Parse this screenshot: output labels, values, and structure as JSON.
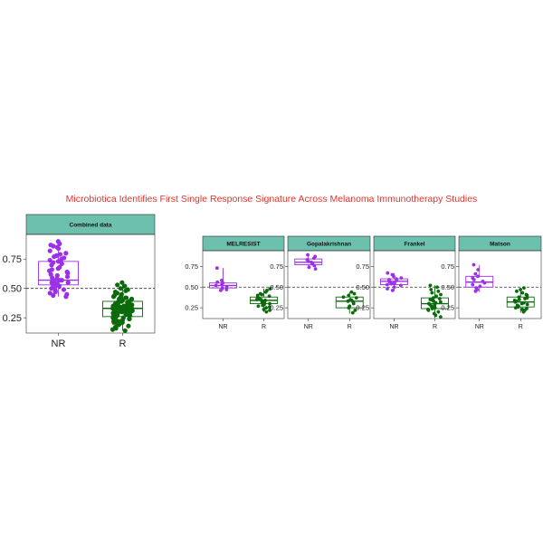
{
  "title": "Microbiotica Identifies First Single Response Signature Across Melanoma Immunotherapy Studies",
  "colors": {
    "nr": "#9b30e8",
    "r": "#0a6b0a",
    "strip": "#6dbfae",
    "title": "#e8312a"
  },
  "chart_data": [
    {
      "type": "box",
      "title": "Combined data",
      "categories": [
        "NR",
        "R"
      ],
      "yticks": [
        "0.25",
        "0.50",
        "0.75"
      ],
      "ylim": [
        0.12,
        0.96
      ],
      "reference_line": 0.5,
      "boxes": [
        {
          "name": "NR",
          "q1": 0.53,
          "median": 0.57,
          "q3": 0.73,
          "whisker_low": 0.43,
          "whisker_high": 0.9,
          "points": [
            0.9,
            0.88,
            0.87,
            0.86,
            0.85,
            0.84,
            0.82,
            0.8,
            0.79,
            0.78,
            0.77,
            0.76,
            0.75,
            0.74,
            0.73,
            0.72,
            0.71,
            0.7,
            0.68,
            0.67,
            0.66,
            0.65,
            0.64,
            0.63,
            0.62,
            0.61,
            0.6,
            0.59,
            0.58,
            0.57,
            0.57,
            0.56,
            0.55,
            0.55,
            0.54,
            0.53,
            0.52,
            0.51,
            0.5,
            0.49,
            0.48,
            0.47,
            0.46,
            0.45,
            0.44,
            0.43
          ]
        },
        {
          "name": "R",
          "q1": 0.26,
          "median": 0.33,
          "q3": 0.39,
          "whisker_low": 0.14,
          "whisker_high": 0.55,
          "points": [
            0.55,
            0.53,
            0.52,
            0.5,
            0.49,
            0.48,
            0.47,
            0.46,
            0.45,
            0.44,
            0.43,
            0.43,
            0.42,
            0.42,
            0.41,
            0.41,
            0.4,
            0.4,
            0.4,
            0.39,
            0.39,
            0.39,
            0.38,
            0.38,
            0.38,
            0.37,
            0.37,
            0.37,
            0.36,
            0.36,
            0.36,
            0.36,
            0.35,
            0.35,
            0.35,
            0.35,
            0.34,
            0.34,
            0.34,
            0.34,
            0.33,
            0.33,
            0.33,
            0.33,
            0.33,
            0.32,
            0.32,
            0.32,
            0.32,
            0.31,
            0.31,
            0.31,
            0.31,
            0.3,
            0.3,
            0.3,
            0.3,
            0.29,
            0.29,
            0.29,
            0.28,
            0.28,
            0.28,
            0.27,
            0.27,
            0.27,
            0.26,
            0.26,
            0.26,
            0.25,
            0.25,
            0.24,
            0.24,
            0.23,
            0.23,
            0.22,
            0.22,
            0.21,
            0.21,
            0.2,
            0.2,
            0.19,
            0.18,
            0.17,
            0.16,
            0.15,
            0.14
          ]
        }
      ]
    },
    {
      "type": "box",
      "title": "MELRESIST",
      "categories": [
        "NR",
        "R"
      ],
      "yticks": [
        "0.25",
        "0.50",
        "0.75"
      ],
      "ylim": [
        0.12,
        0.94
      ],
      "reference_line": 0.5,
      "boxes": [
        {
          "name": "NR",
          "q1": 0.49,
          "median": 0.52,
          "q3": 0.55,
          "whisker_low": 0.46,
          "whisker_high": 0.73,
          "points": [
            0.73,
            0.58,
            0.56,
            0.55,
            0.53,
            0.52,
            0.5,
            0.49,
            0.47,
            0.46
          ]
        },
        {
          "name": "R",
          "q1": 0.3,
          "median": 0.34,
          "q3": 0.38,
          "whisker_low": 0.2,
          "whisker_high": 0.48,
          "points": [
            0.48,
            0.46,
            0.44,
            0.42,
            0.41,
            0.4,
            0.39,
            0.38,
            0.37,
            0.36,
            0.35,
            0.35,
            0.34,
            0.33,
            0.32,
            0.31,
            0.3,
            0.29,
            0.28,
            0.27,
            0.26,
            0.25,
            0.23,
            0.22,
            0.2
          ]
        }
      ]
    },
    {
      "type": "box",
      "title": "Gopalakrishnan",
      "categories": [
        "NR",
        "R"
      ],
      "yticks": [
        "0.25",
        "0.50",
        "0.75"
      ],
      "ylim": [
        0.12,
        0.94
      ],
      "reference_line": 0.5,
      "boxes": [
        {
          "name": "NR",
          "q1": 0.77,
          "median": 0.8,
          "q3": 0.84,
          "whisker_low": 0.72,
          "whisker_high": 0.89,
          "points": [
            0.89,
            0.87,
            0.85,
            0.83,
            0.81,
            0.8,
            0.78,
            0.76,
            0.74,
            0.72
          ]
        },
        {
          "name": "R",
          "q1": 0.25,
          "median": 0.33,
          "q3": 0.38,
          "whisker_low": 0.18,
          "whisker_high": 0.44,
          "points": [
            0.44,
            0.42,
            0.4,
            0.38,
            0.37,
            0.35,
            0.34,
            0.33,
            0.32,
            0.3,
            0.27,
            0.25,
            0.22,
            0.19
          ]
        }
      ]
    },
    {
      "type": "box",
      "title": "Frankel",
      "categories": [
        "NR",
        "R"
      ],
      "yticks": [
        "0.25",
        "0.50",
        "0.75"
      ],
      "ylim": [
        0.12,
        0.94
      ],
      "reference_line": 0.5,
      "boxes": [
        {
          "name": "NR",
          "q1": 0.53,
          "median": 0.57,
          "q3": 0.6,
          "whisker_low": 0.45,
          "whisker_high": 0.67,
          "points": [
            0.67,
            0.65,
            0.63,
            0.61,
            0.6,
            0.59,
            0.58,
            0.57,
            0.56,
            0.55,
            0.54,
            0.53,
            0.52,
            0.5,
            0.48,
            0.46
          ]
        },
        {
          "name": "R",
          "q1": 0.24,
          "median": 0.3,
          "q3": 0.37,
          "whisker_low": 0.13,
          "whisker_high": 0.52,
          "points": [
            0.52,
            0.5,
            0.47,
            0.45,
            0.43,
            0.41,
            0.39,
            0.37,
            0.36,
            0.35,
            0.34,
            0.33,
            0.32,
            0.31,
            0.3,
            0.29,
            0.28,
            0.27,
            0.26,
            0.25,
            0.24,
            0.23,
            0.22,
            0.2,
            0.18,
            0.16,
            0.14
          ]
        }
      ]
    },
    {
      "type": "box",
      "title": "Matson",
      "categories": [
        "NR",
        "R"
      ],
      "yticks": [
        "0.25",
        "0.50",
        "0.75"
      ],
      "ylim": [
        0.12,
        0.94
      ],
      "reference_line": 0.5,
      "boxes": [
        {
          "name": "NR",
          "q1": 0.5,
          "median": 0.56,
          "q3": 0.63,
          "whisker_low": 0.44,
          "whisker_high": 0.77,
          "points": [
            0.77,
            0.71,
            0.66,
            0.63,
            0.61,
            0.59,
            0.57,
            0.55,
            0.53,
            0.51,
            0.49,
            0.47,
            0.45
          ]
        },
        {
          "name": "R",
          "q1": 0.26,
          "median": 0.32,
          "q3": 0.38,
          "whisker_low": 0.19,
          "whisker_high": 0.49,
          "points": [
            0.49,
            0.47,
            0.45,
            0.43,
            0.41,
            0.4,
            0.38,
            0.37,
            0.36,
            0.35,
            0.34,
            0.33,
            0.32,
            0.31,
            0.3,
            0.29,
            0.28,
            0.27,
            0.26,
            0.25,
            0.24,
            0.23,
            0.22,
            0.2
          ]
        }
      ]
    }
  ]
}
